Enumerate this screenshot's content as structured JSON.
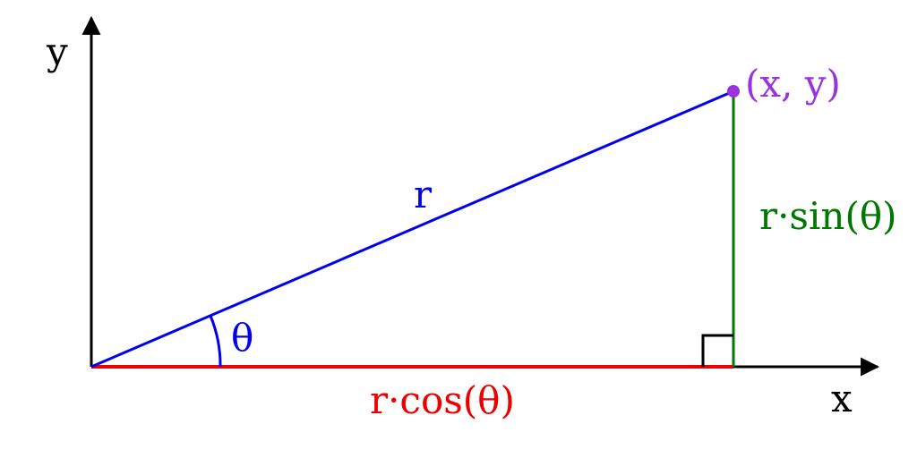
{
  "axes": {
    "x_label": "x",
    "y_label": "y"
  },
  "labels": {
    "hypotenuse": "r",
    "angle": "θ",
    "adjacent": "r·cos(θ)",
    "opposite": "r·sin(θ)",
    "point": "(x, y)"
  },
  "colors": {
    "axes": "#000000",
    "hypotenuse": "#0000ee",
    "angle_arc": "#0000ee",
    "adjacent": "#ee0000",
    "opposite": "#007700",
    "point": "#9933dd",
    "right_angle_marker": "#000000"
  }
}
